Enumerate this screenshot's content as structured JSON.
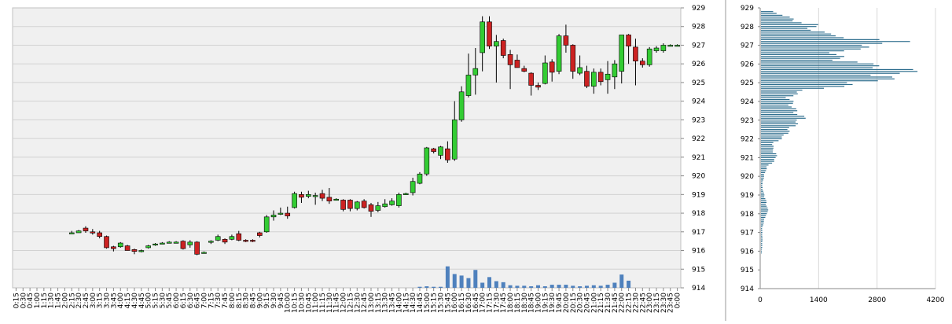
{
  "chart_data": [
    {
      "type": "candlestick",
      "ylim": [
        914,
        929
      ],
      "y_ticks": [
        "914",
        "915",
        "916",
        "917",
        "918",
        "919",
        "920",
        "921",
        "922",
        "923",
        "924",
        "925",
        "926",
        "927",
        "928",
        "929"
      ],
      "x_ticks": [
        "0:15",
        "0:30",
        "0:45",
        "1:00",
        "1:15",
        "1:30",
        "1:45",
        "2:00",
        "2:15",
        "2:30",
        "2:45",
        "3:00",
        "3:15",
        "3:30",
        "3:45",
        "4:00",
        "4:15",
        "4:30",
        "4:45",
        "5:00",
        "5:15",
        "5:30",
        "5:45",
        "6:00",
        "6:15",
        "6:30",
        "6:45",
        "7:00",
        "7:15",
        "7:30",
        "7:45",
        "8:00",
        "8:15",
        "8:30",
        "8:45",
        "9:00",
        "9:15",
        "9:30",
        "9:45",
        "10:00",
        "10:15",
        "10:30",
        "10:45",
        "11:00",
        "11:15",
        "11:30",
        "11:45",
        "12:00",
        "12:15",
        "12:30",
        "12:45",
        "13:00",
        "13:15",
        "13:30",
        "13:45",
        "14:00",
        "14:15",
        "14:30",
        "14:45",
        "15:00",
        "15:15",
        "15:30",
        "15:45",
        "16:00",
        "16:15",
        "16:30",
        "16:45",
        "17:00",
        "17:15",
        "17:30",
        "17:45",
        "18:00",
        "18:15",
        "18:30",
        "18:45",
        "19:00",
        "19:15",
        "19:30",
        "19:45",
        "20:00",
        "20:15",
        "20:30",
        "20:45",
        "21:00",
        "21:15",
        "21:30",
        "21:45",
        "22:00",
        "22:15",
        "22:30",
        "22:45",
        "23:00",
        "23:15",
        "23:30",
        "23:45",
        "0:00"
      ],
      "up_color": "#33cc33",
      "down_color": "#cc2222",
      "volume_color": "#4f81bd",
      "candles": [
        {
          "t": "2:15",
          "o": 916.95,
          "h": 917.05,
          "l": 916.9,
          "c": 916.95
        },
        {
          "t": "2:30",
          "o": 916.95,
          "h": 917.1,
          "l": 916.95,
          "c": 917.05
        },
        {
          "t": "2:45",
          "o": 917.2,
          "h": 917.3,
          "l": 916.95,
          "c": 917.05
        },
        {
          "t": "3:00",
          "o": 917.0,
          "h": 917.15,
          "l": 916.85,
          "c": 916.95
        },
        {
          "t": "3:15",
          "o": 916.95,
          "h": 917.05,
          "l": 916.65,
          "c": 916.75
        },
        {
          "t": "3:30",
          "o": 916.75,
          "h": 916.8,
          "l": 916.1,
          "c": 916.15
        },
        {
          "t": "3:45",
          "o": 916.2,
          "h": 916.25,
          "l": 915.95,
          "c": 916.1
        },
        {
          "t": "4:00",
          "o": 916.2,
          "h": 916.45,
          "l": 916.15,
          "c": 916.4
        },
        {
          "t": "4:15",
          "o": 916.25,
          "h": 916.3,
          "l": 916.0,
          "c": 916.0
        },
        {
          "t": "4:30",
          "o": 916.05,
          "h": 916.1,
          "l": 915.8,
          "c": 915.95
        },
        {
          "t": "4:45",
          "o": 915.95,
          "h": 916.05,
          "l": 915.9,
          "c": 916.0
        },
        {
          "t": "5:00",
          "o": 916.15,
          "h": 916.3,
          "l": 916.1,
          "c": 916.25
        },
        {
          "t": "5:15",
          "o": 916.3,
          "h": 916.4,
          "l": 916.25,
          "c": 916.35
        },
        {
          "t": "5:30",
          "o": 916.4,
          "h": 916.45,
          "l": 916.35,
          "c": 916.4
        },
        {
          "t": "5:45",
          "o": 916.45,
          "h": 916.5,
          "l": 916.4,
          "c": 916.45
        },
        {
          "t": "6:00",
          "o": 916.45,
          "h": 916.5,
          "l": 916.4,
          "c": 916.45
        },
        {
          "t": "6:15",
          "o": 916.5,
          "h": 916.55,
          "l": 916.05,
          "c": 916.1
        },
        {
          "t": "6:30",
          "o": 916.3,
          "h": 916.55,
          "l": 916.15,
          "c": 916.45
        },
        {
          "t": "6:45",
          "o": 916.45,
          "h": 916.5,
          "l": 915.75,
          "c": 915.8
        },
        {
          "t": "7:00",
          "o": 915.9,
          "h": 915.95,
          "l": 915.85,
          "c": 915.9
        },
        {
          "t": "7:15",
          "o": 916.45,
          "h": 916.55,
          "l": 916.35,
          "c": 916.5
        },
        {
          "t": "7:30",
          "o": 916.55,
          "h": 916.85,
          "l": 916.5,
          "c": 916.75
        },
        {
          "t": "7:45",
          "o": 916.6,
          "h": 916.65,
          "l": 916.35,
          "c": 916.45
        },
        {
          "t": "8:00",
          "o": 916.6,
          "h": 916.85,
          "l": 916.55,
          "c": 916.75
        },
        {
          "t": "8:15",
          "o": 916.9,
          "h": 917.05,
          "l": 916.5,
          "c": 916.55
        },
        {
          "t": "8:30",
          "o": 916.55,
          "h": 916.6,
          "l": 916.45,
          "c": 916.5
        },
        {
          "t": "8:45",
          "o": 916.55,
          "h": 916.6,
          "l": 916.45,
          "c": 916.5
        },
        {
          "t": "9:00",
          "o": 916.95,
          "h": 917.0,
          "l": 916.7,
          "c": 916.8
        },
        {
          "t": "9:15",
          "o": 917.0,
          "h": 917.9,
          "l": 916.95,
          "c": 917.8
        },
        {
          "t": "9:30",
          "o": 917.8,
          "h": 918.15,
          "l": 917.6,
          "c": 917.9
        },
        {
          "t": "9:45",
          "o": 917.95,
          "h": 918.3,
          "l": 917.9,
          "c": 918.0
        },
        {
          "t": "10:00",
          "o": 918.0,
          "h": 918.35,
          "l": 917.7,
          "c": 917.85
        },
        {
          "t": "10:15",
          "o": 918.3,
          "h": 919.15,
          "l": 918.25,
          "c": 919.05
        },
        {
          "t": "10:30",
          "o": 919.0,
          "h": 919.15,
          "l": 918.55,
          "c": 918.85
        },
        {
          "t": "10:45",
          "o": 918.9,
          "h": 919.2,
          "l": 918.8,
          "c": 919.0
        },
        {
          "t": "11:00",
          "o": 918.95,
          "h": 919.1,
          "l": 918.45,
          "c": 918.95
        },
        {
          "t": "11:15",
          "o": 919.05,
          "h": 919.25,
          "l": 918.65,
          "c": 918.8
        },
        {
          "t": "11:30",
          "o": 918.85,
          "h": 919.35,
          "l": 918.5,
          "c": 918.65
        },
        {
          "t": "11:45",
          "o": 918.75,
          "h": 918.8,
          "l": 918.7,
          "c": 918.75
        },
        {
          "t": "12:00",
          "o": 918.7,
          "h": 918.75,
          "l": 918.1,
          "c": 918.2
        },
        {
          "t": "12:15",
          "o": 918.7,
          "h": 918.75,
          "l": 918.1,
          "c": 918.25
        },
        {
          "t": "12:30",
          "o": 918.25,
          "h": 918.65,
          "l": 918.15,
          "c": 918.6
        },
        {
          "t": "12:45",
          "o": 918.65,
          "h": 918.75,
          "l": 918.25,
          "c": 918.3
        },
        {
          "t": "13:00",
          "o": 918.45,
          "h": 918.55,
          "l": 917.8,
          "c": 918.1
        },
        {
          "t": "13:15",
          "o": 918.15,
          "h": 918.6,
          "l": 918.05,
          "c": 918.4
        },
        {
          "t": "13:30",
          "o": 918.35,
          "h": 918.75,
          "l": 918.3,
          "c": 918.5
        },
        {
          "t": "13:45",
          "o": 918.45,
          "h": 918.8,
          "l": 918.4,
          "c": 918.65
        },
        {
          "t": "14:00",
          "o": 918.4,
          "h": 919.1,
          "l": 918.3,
          "c": 919.0
        },
        {
          "t": "14:15",
          "o": 919.05,
          "h": 919.1,
          "l": 919.0,
          "c": 919.05
        },
        {
          "t": "14:30",
          "o": 919.1,
          "h": 919.9,
          "l": 918.95,
          "c": 919.7
        },
        {
          "t": "14:45",
          "o": 919.6,
          "h": 920.2,
          "l": 919.55,
          "c": 920.1
        },
        {
          "t": "15:00",
          "o": 920.1,
          "h": 921.55,
          "l": 920.0,
          "c": 921.5
        },
        {
          "t": "15:15",
          "o": 921.45,
          "h": 921.5,
          "l": 921.2,
          "c": 921.3
        },
        {
          "t": "15:30",
          "o": 921.1,
          "h": 921.6,
          "l": 920.9,
          "c": 921.55
        },
        {
          "t": "15:45",
          "o": 921.45,
          "h": 921.85,
          "l": 920.7,
          "c": 920.85
        },
        {
          "t": "16:00",
          "o": 920.9,
          "h": 924.0,
          "l": 920.8,
          "c": 923.0
        },
        {
          "t": "16:15",
          "o": 923.0,
          "h": 924.8,
          "l": 922.9,
          "c": 924.5
        },
        {
          "t": "16:30",
          "o": 924.3,
          "h": 926.55,
          "l": 924.2,
          "c": 925.4
        },
        {
          "t": "16:45",
          "o": 925.4,
          "h": 926.85,
          "l": 924.35,
          "c": 925.75
        },
        {
          "t": "17:00",
          "o": 926.6,
          "h": 928.55,
          "l": 925.6,
          "c": 928.25
        },
        {
          "t": "17:15",
          "o": 928.25,
          "h": 928.55,
          "l": 926.8,
          "c": 926.95
        },
        {
          "t": "17:30",
          "o": 926.95,
          "h": 927.55,
          "l": 925.0,
          "c": 927.2
        },
        {
          "t": "17:45",
          "o": 927.25,
          "h": 927.35,
          "l": 926.3,
          "c": 926.45
        },
        {
          "t": "18:00",
          "o": 926.5,
          "h": 926.75,
          "l": 924.65,
          "c": 925.95
        },
        {
          "t": "18:15",
          "o": 926.2,
          "h": 926.5,
          "l": 925.8,
          "c": 925.8
        },
        {
          "t": "18:30",
          "o": 925.75,
          "h": 925.9,
          "l": 925.55,
          "c": 925.6
        },
        {
          "t": "18:45",
          "o": 925.5,
          "h": 925.55,
          "l": 924.3,
          "c": 924.85
        },
        {
          "t": "19:00",
          "o": 924.85,
          "h": 925.0,
          "l": 924.6,
          "c": 924.75
        },
        {
          "t": "19:15",
          "o": 924.95,
          "h": 926.45,
          "l": 924.9,
          "c": 926.05
        },
        {
          "t": "19:30",
          "o": 926.1,
          "h": 926.25,
          "l": 925.05,
          "c": 925.55
        },
        {
          "t": "19:45",
          "o": 925.6,
          "h": 927.6,
          "l": 925.45,
          "c": 927.5
        },
        {
          "t": "20:00",
          "o": 927.5,
          "h": 928.1,
          "l": 926.6,
          "c": 927.0
        },
        {
          "t": "20:15",
          "o": 927.0,
          "h": 927.05,
          "l": 925.2,
          "c": 925.6
        },
        {
          "t": "20:30",
          "o": 925.5,
          "h": 926.45,
          "l": 925.4,
          "c": 925.8
        },
        {
          "t": "20:45",
          "o": 925.6,
          "h": 925.9,
          "l": 924.7,
          "c": 924.8
        },
        {
          "t": "21:00",
          "o": 924.8,
          "h": 925.75,
          "l": 924.4,
          "c": 925.55
        },
        {
          "t": "21:15",
          "o": 925.55,
          "h": 925.75,
          "l": 924.85,
          "c": 925.05
        },
        {
          "t": "21:30",
          "o": 925.15,
          "h": 926.15,
          "l": 924.4,
          "c": 925.45
        },
        {
          "t": "21:45",
          "o": 925.3,
          "h": 926.2,
          "l": 924.65,
          "c": 926.0
        },
        {
          "t": "22:00",
          "o": 925.6,
          "h": 927.5,
          "l": 924.95,
          "c": 927.55
        },
        {
          "t": "22:15",
          "o": 927.55,
          "h": 927.6,
          "l": 926.0,
          "c": 926.95
        },
        {
          "t": "22:30",
          "o": 926.9,
          "h": 927.35,
          "l": 924.85,
          "c": 926.15
        },
        {
          "t": "22:45",
          "o": 926.15,
          "h": 926.3,
          "l": 925.8,
          "c": 925.95
        },
        {
          "t": "23:00",
          "o": 925.95,
          "h": 926.9,
          "l": 925.85,
          "c": 926.8
        },
        {
          "t": "23:15",
          "o": 926.7,
          "h": 926.95,
          "l": 926.6,
          "c": 926.85
        },
        {
          "t": "23:30",
          "o": 926.7,
          "h": 927.1,
          "l": 926.6,
          "c": 927.0
        },
        {
          "t": "23:45",
          "o": 927.0,
          "h": 927.05,
          "l": 926.95,
          "c": 927.0
        },
        {
          "t": "0:00",
          "o": 927.0,
          "h": 927.05,
          "l": 926.95,
          "c": 927.0
        }
      ],
      "volume_bars": [
        {
          "t": "14:45",
          "v": 0.1
        },
        {
          "t": "15:00",
          "v": 0.15
        },
        {
          "t": "15:15",
          "v": 0.1
        },
        {
          "t": "15:30",
          "v": 0.1
        },
        {
          "t": "15:45",
          "v": 2.1
        },
        {
          "t": "16:00",
          "v": 1.35
        },
        {
          "t": "16:15",
          "v": 1.2
        },
        {
          "t": "16:30",
          "v": 0.95
        },
        {
          "t": "16:45",
          "v": 1.75
        },
        {
          "t": "17:00",
          "v": 0.5
        },
        {
          "t": "17:15",
          "v": 1.05
        },
        {
          "t": "17:30",
          "v": 0.65
        },
        {
          "t": "17:45",
          "v": 0.55
        },
        {
          "t": "18:00",
          "v": 0.25
        },
        {
          "t": "18:15",
          "v": 0.2
        },
        {
          "t": "18:30",
          "v": 0.2
        },
        {
          "t": "18:45",
          "v": 0.15
        },
        {
          "t": "19:00",
          "v": 0.25
        },
        {
          "t": "19:15",
          "v": 0.15
        },
        {
          "t": "19:30",
          "v": 0.3
        },
        {
          "t": "19:45",
          "v": 0.3
        },
        {
          "t": "20:00",
          "v": 0.3
        },
        {
          "t": "20:15",
          "v": 0.2
        },
        {
          "t": "20:30",
          "v": 0.15
        },
        {
          "t": "20:45",
          "v": 0.2
        },
        {
          "t": "21:00",
          "v": 0.25
        },
        {
          "t": "21:15",
          "v": 0.2
        },
        {
          "t": "21:30",
          "v": 0.3
        },
        {
          "t": "21:45",
          "v": 0.5
        },
        {
          "t": "22:00",
          "v": 1.3
        },
        {
          "t": "22:15",
          "v": 0.7
        }
      ]
    },
    {
      "type": "horizontal-bar",
      "xlim": [
        0,
        4200
      ],
      "x_ticks": [
        "0",
        "1400",
        "2800",
        "4200"
      ],
      "ylim": [
        914,
        929
      ],
      "y_ticks": [
        "914",
        "915",
        "916",
        "917",
        "918",
        "919",
        "920",
        "921",
        "922",
        "923",
        "924",
        "925",
        "926",
        "927",
        "928",
        "929"
      ],
      "bar_color": "#2e6e8e",
      "profile_anchors": [
        [
          915.9,
          20
        ],
        [
          916.6,
          40
        ],
        [
          917.2,
          30
        ],
        [
          917.6,
          80
        ],
        [
          917.9,
          120
        ],
        [
          918.1,
          200
        ],
        [
          918.3,
          160
        ],
        [
          918.6,
          140
        ],
        [
          918.9,
          100
        ],
        [
          919.2,
          60
        ],
        [
          919.5,
          30
        ],
        [
          920.0,
          80
        ],
        [
          920.3,
          120
        ],
        [
          920.6,
          200
        ],
        [
          920.9,
          400
        ],
        [
          921.2,
          380
        ],
        [
          921.5,
          300
        ],
        [
          921.8,
          340
        ],
        [
          922.1,
          600
        ],
        [
          922.4,
          700
        ],
        [
          922.8,
          900
        ],
        [
          923.1,
          1100
        ],
        [
          923.3,
          1000
        ],
        [
          923.6,
          850
        ],
        [
          923.9,
          800
        ],
        [
          924.2,
          750
        ],
        [
          924.5,
          950
        ],
        [
          924.7,
          1600
        ],
        [
          924.9,
          2400
        ],
        [
          925.1,
          3000
        ],
        [
          925.3,
          3400
        ],
        [
          925.5,
          3600
        ],
        [
          925.7,
          3900
        ],
        [
          925.85,
          3300
        ],
        [
          926.0,
          2700
        ],
        [
          926.2,
          2200
        ],
        [
          926.5,
          1900
        ],
        [
          926.8,
          2400
        ],
        [
          927.0,
          3000
        ],
        [
          927.2,
          3600
        ],
        [
          927.35,
          2600
        ],
        [
          927.6,
          1700
        ],
        [
          927.9,
          1300
        ],
        [
          928.1,
          1400
        ],
        [
          928.3,
          900
        ],
        [
          928.6,
          600
        ],
        [
          928.8,
          300
        ]
      ]
    }
  ]
}
